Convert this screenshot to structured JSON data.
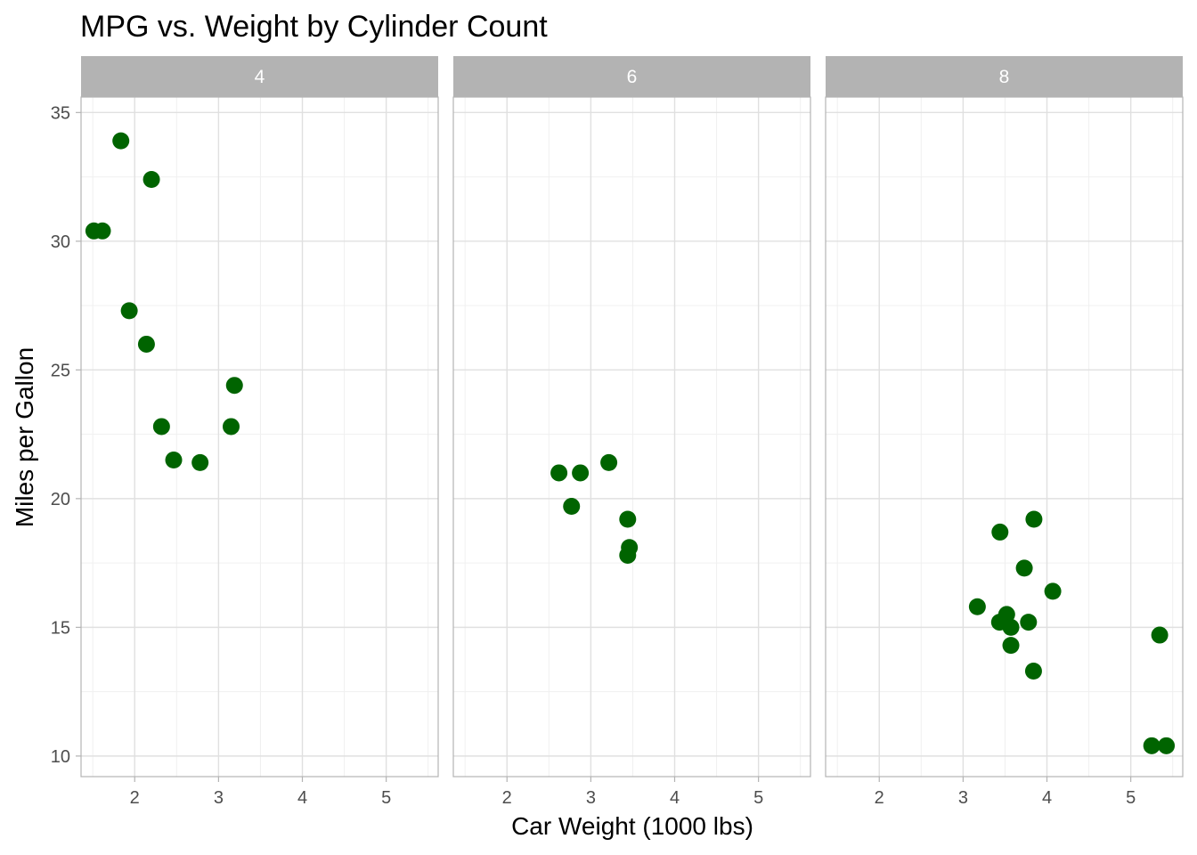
{
  "chart_data": {
    "type": "scatter",
    "title": "MPG vs. Weight by Cylinder Count",
    "xlabel": "Car Weight (1000 lbs)",
    "ylabel": "Miles per Gallon",
    "xlim": [
      1.36,
      5.62
    ],
    "ylim": [
      9.2,
      35.6
    ],
    "x_ticks": [
      2,
      3,
      4,
      5
    ],
    "y_ticks": [
      10,
      15,
      20,
      25,
      30,
      35
    ],
    "x_tick_labels": [
      "2",
      "3",
      "4",
      "5"
    ],
    "y_tick_labels": [
      "10",
      "15",
      "20",
      "25",
      "30",
      "35"
    ],
    "grid": true,
    "point_color": "#006400",
    "facets": [
      {
        "label": "4",
        "points": [
          {
            "x": 2.32,
            "y": 22.8
          },
          {
            "x": 3.19,
            "y": 24.4
          },
          {
            "x": 3.15,
            "y": 22.8
          },
          {
            "x": 2.2,
            "y": 32.4
          },
          {
            "x": 1.615,
            "y": 30.4
          },
          {
            "x": 1.835,
            "y": 33.9
          },
          {
            "x": 2.465,
            "y": 21.5
          },
          {
            "x": 1.935,
            "y": 27.3
          },
          {
            "x": 2.14,
            "y": 26.0
          },
          {
            "x": 1.513,
            "y": 30.4
          },
          {
            "x": 2.78,
            "y": 21.4
          }
        ]
      },
      {
        "label": "6",
        "points": [
          {
            "x": 2.62,
            "y": 21.0
          },
          {
            "x": 2.875,
            "y": 21.0
          },
          {
            "x": 3.215,
            "y": 21.4
          },
          {
            "x": 3.46,
            "y": 18.1
          },
          {
            "x": 3.44,
            "y": 19.2
          },
          {
            "x": 3.44,
            "y": 17.8
          },
          {
            "x": 2.77,
            "y": 19.7
          }
        ]
      },
      {
        "label": "8",
        "points": [
          {
            "x": 3.44,
            "y": 18.7
          },
          {
            "x": 3.57,
            "y": 14.3
          },
          {
            "x": 4.07,
            "y": 16.4
          },
          {
            "x": 3.73,
            "y": 17.3
          },
          {
            "x": 3.78,
            "y": 15.2
          },
          {
            "x": 5.25,
            "y": 10.4
          },
          {
            "x": 5.424,
            "y": 10.4
          },
          {
            "x": 5.345,
            "y": 14.7
          },
          {
            "x": 3.52,
            "y": 15.5
          },
          {
            "x": 3.435,
            "y": 15.2
          },
          {
            "x": 3.84,
            "y": 13.3
          },
          {
            "x": 3.845,
            "y": 19.2
          },
          {
            "x": 3.17,
            "y": 15.8
          },
          {
            "x": 3.57,
            "y": 15.0
          }
        ]
      }
    ]
  }
}
